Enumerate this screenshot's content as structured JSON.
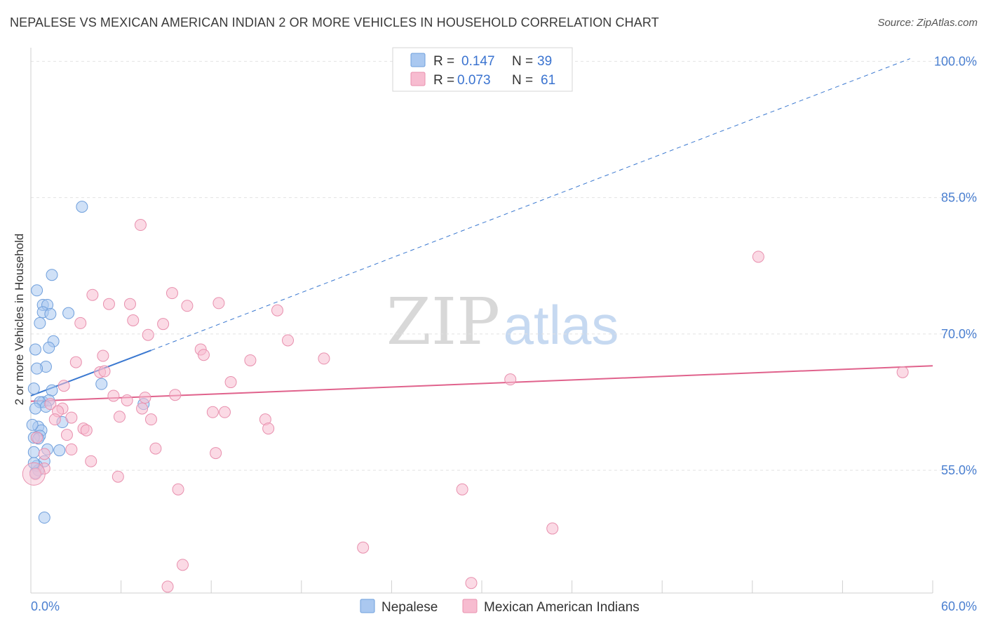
{
  "title": "NEPALESE VS MEXICAN AMERICAN INDIAN 2 OR MORE VEHICLES IN HOUSEHOLD CORRELATION CHART",
  "source": "Source: ZipAtlas.com",
  "watermark": {
    "zip": "ZIP",
    "atlas": "atlas"
  },
  "legend": {
    "r_label": "R =",
    "n_label": "N =",
    "rows": [
      {
        "r": "0.147",
        "n": "39"
      },
      {
        "r": "0.073",
        "n": "61"
      }
    ]
  },
  "colors": {
    "nepalese_fill": "#aac8f0",
    "nepalese_stroke": "#6f9fdc",
    "nepalese_line": "#3a78d0",
    "mexican_fill": "#f7bcd0",
    "mexican_stroke": "#e890ae",
    "mexican_line": "#e0628c"
  },
  "chart_data": {
    "type": "scatter",
    "title": "NEPALESE VS MEXICAN AMERICAN INDIAN 2 OR MORE VEHICLES IN HOUSEHOLD CORRELATION CHART",
    "xlabel": "",
    "ylabel": "2 or more Vehicles in Household",
    "xlim": [
      0,
      60
    ],
    "ylim": [
      41.5,
      101.5
    ],
    "x_tick_labels": [
      {
        "value": 0,
        "label": "0.0%"
      },
      {
        "value": 60,
        "label": "60.0%"
      }
    ],
    "y_tick_labels": [
      {
        "value": 100,
        "label": "100.0%"
      },
      {
        "value": 85,
        "label": "85.0%"
      },
      {
        "value": 70,
        "label": "70.0%"
      },
      {
        "value": 55,
        "label": "55.0%"
      }
    ],
    "series": [
      {
        "name": "Nepalese",
        "points": [
          [
            3.4,
            84.0
          ],
          [
            1.4,
            76.5
          ],
          [
            0.4,
            74.8
          ],
          [
            0.8,
            73.2
          ],
          [
            1.1,
            73.2
          ],
          [
            0.8,
            72.4
          ],
          [
            1.3,
            72.2
          ],
          [
            2.5,
            72.3
          ],
          [
            0.6,
            71.2
          ],
          [
            1.5,
            69.2
          ],
          [
            0.3,
            68.3
          ],
          [
            1.2,
            68.5
          ],
          [
            1.0,
            66.4
          ],
          [
            0.4,
            66.2
          ],
          [
            0.2,
            64.0
          ],
          [
            1.4,
            63.8
          ],
          [
            4.7,
            64.5
          ],
          [
            0.8,
            62.5
          ],
          [
            1.2,
            62.7
          ],
          [
            0.6,
            62.5
          ],
          [
            7.5,
            62.3
          ],
          [
            1.0,
            62.0
          ],
          [
            2.1,
            60.3
          ],
          [
            0.5,
            59.8
          ],
          [
            0.7,
            59.4
          ],
          [
            0.6,
            58.8
          ],
          [
            0.2,
            58.6
          ],
          [
            1.1,
            57.3
          ],
          [
            1.9,
            57.2
          ],
          [
            0.2,
            57.0
          ],
          [
            0.9,
            56.0
          ],
          [
            0.4,
            55.5
          ],
          [
            0.5,
            55.0
          ],
          [
            0.3,
            54.7
          ],
          [
            0.9,
            49.8
          ],
          [
            0.1,
            60.0
          ],
          [
            0.3,
            61.8
          ],
          [
            0.5,
            58.5
          ],
          [
            0.2,
            55.8
          ]
        ],
        "trend": {
          "x0": 0,
          "y0": 63.2,
          "x1": 8.0,
          "y1": 68.2,
          "dash_x1": 58.5,
          "dash_y1": 100.3
        }
      },
      {
        "name": "Mexican American Indians",
        "points": [
          [
            7.3,
            82.0
          ],
          [
            48.4,
            78.5
          ],
          [
            4.1,
            74.3
          ],
          [
            9.4,
            74.5
          ],
          [
            5.2,
            73.3
          ],
          [
            6.6,
            73.3
          ],
          [
            10.4,
            73.1
          ],
          [
            12.5,
            73.4
          ],
          [
            16.4,
            72.6
          ],
          [
            6.8,
            71.5
          ],
          [
            3.3,
            71.2
          ],
          [
            8.8,
            71.1
          ],
          [
            7.8,
            69.9
          ],
          [
            17.1,
            69.3
          ],
          [
            11.3,
            68.3
          ],
          [
            11.5,
            67.7
          ],
          [
            4.8,
            67.6
          ],
          [
            19.5,
            67.3
          ],
          [
            14.6,
            67.1
          ],
          [
            3.0,
            66.9
          ],
          [
            4.6,
            65.8
          ],
          [
            4.9,
            65.9
          ],
          [
            58.0,
            65.8
          ],
          [
            13.3,
            64.7
          ],
          [
            31.9,
            65.0
          ],
          [
            2.2,
            64.3
          ],
          [
            5.5,
            63.2
          ],
          [
            9.6,
            63.3
          ],
          [
            7.6,
            63.0
          ],
          [
            6.4,
            62.7
          ],
          [
            1.3,
            62.3
          ],
          [
            2.1,
            61.8
          ],
          [
            7.4,
            61.8
          ],
          [
            12.1,
            61.4
          ],
          [
            12.9,
            61.4
          ],
          [
            1.8,
            61.5
          ],
          [
            5.9,
            60.9
          ],
          [
            1.6,
            60.6
          ],
          [
            2.7,
            60.8
          ],
          [
            8.0,
            60.6
          ],
          [
            15.6,
            60.6
          ],
          [
            3.5,
            59.6
          ],
          [
            3.7,
            59.4
          ],
          [
            15.8,
            59.6
          ],
          [
            2.4,
            58.9
          ],
          [
            0.4,
            58.6
          ],
          [
            8.3,
            57.4
          ],
          [
            2.7,
            57.3
          ],
          [
            12.3,
            56.9
          ],
          [
            0.9,
            56.8
          ],
          [
            4.0,
            56.0
          ],
          [
            0.9,
            55.2
          ],
          [
            5.8,
            54.3
          ],
          [
            0.3,
            54.6
          ],
          [
            9.8,
            52.9
          ],
          [
            28.7,
            52.9
          ],
          [
            34.7,
            48.6
          ],
          [
            22.1,
            46.5
          ],
          [
            10.1,
            44.6
          ],
          [
            9.1,
            42.2
          ],
          [
            29.3,
            42.6
          ]
        ],
        "trend": {
          "x0": 0,
          "y0": 62.6,
          "x1": 60,
          "y1": 66.5
        }
      }
    ],
    "legend_entries": [
      "Nepalese",
      "Mexican American Indians"
    ],
    "grid": true
  }
}
